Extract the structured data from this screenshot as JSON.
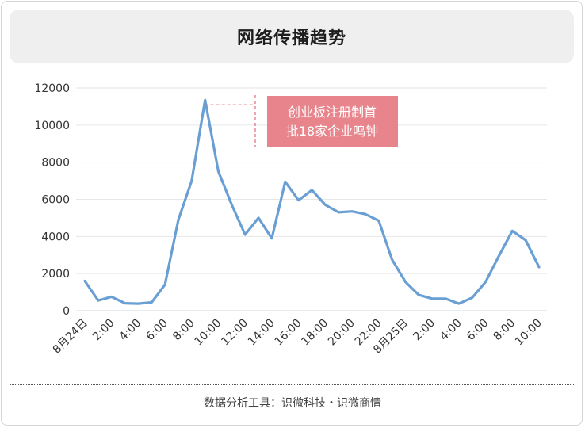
{
  "title": "网络传播趋势",
  "source": "数据分析工具：识微科技・识微商情",
  "annotation": "创业板注册制首\n批18家企业鸣钟",
  "colors": {
    "line": "#6a9fd4",
    "annotation_bg": "#e8848b",
    "annotation_text": "#ffffff",
    "dash": "#e06c75",
    "grid": "#e6e6e6"
  },
  "chart_data": {
    "type": "line",
    "title": "网络传播趋势",
    "xlabel": "",
    "ylabel": "",
    "ylim": [
      0,
      12000
    ],
    "yticks": [
      0,
      2000,
      4000,
      6000,
      8000,
      10000,
      12000
    ],
    "ytick_labels": [
      "0",
      "2000",
      "4000",
      "6000",
      "8000",
      "10000",
      "12000"
    ],
    "x": [
      "8月24日 0:00",
      "1:00",
      "2:00",
      "3:00",
      "4:00",
      "5:00",
      "6:00",
      "7:00",
      "8:00",
      "9:00",
      "10:00",
      "11:00",
      "12:00",
      "13:00",
      "14:00",
      "15:00",
      "16:00",
      "17:00",
      "18:00",
      "19:00",
      "20:00",
      "21:00",
      "22:00",
      "23:00",
      "8月25日 0:00",
      "1:00",
      "2:00",
      "3:00",
      "4:00",
      "5:00",
      "6:00",
      "7:00",
      "8:00",
      "9:00",
      "10:00"
    ],
    "xtick_labels": [
      "8月24日",
      "2:00",
      "4:00",
      "6:00",
      "8:00",
      "10:00",
      "12:00",
      "14:00",
      "16:00",
      "18:00",
      "20:00",
      "22:00",
      "8月25日",
      "2:00",
      "4:00",
      "6:00",
      "8:00",
      "10:00"
    ],
    "series": [
      {
        "values": [
          1600,
          550,
          750,
          400,
          380,
          450,
          1400,
          4900,
          7000,
          11350,
          7500,
          5700,
          4100,
          5000,
          3900,
          6950,
          5950,
          6500,
          5700,
          5300,
          5350,
          5200,
          4850,
          2750,
          1550,
          850,
          650,
          650,
          380,
          700,
          1550,
          2950,
          4300,
          3800,
          2350
        ]
      }
    ],
    "grid": true,
    "legend": "none"
  }
}
